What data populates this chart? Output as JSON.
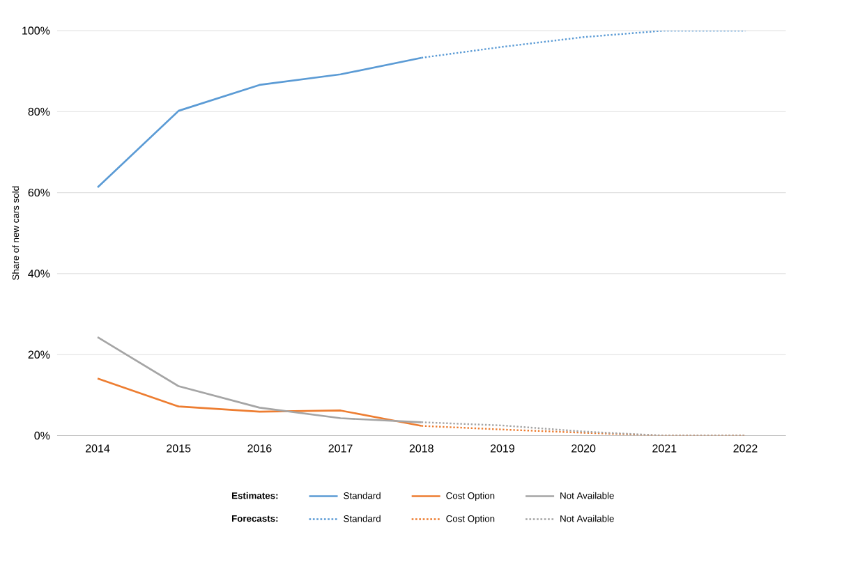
{
  "chart_data": {
    "type": "line",
    "ylabel": "Share of new cars sold",
    "categories": [
      "2014",
      "2015",
      "2016",
      "2017",
      "2018",
      "2019",
      "2020",
      "2021",
      "2022"
    ],
    "series": [
      {
        "name": "Standard",
        "color": "#5b9bd5",
        "line_style": "solid",
        "values": [
          61.3,
          80.2,
          86.6,
          89.2,
          93.3,
          null,
          null,
          null,
          null
        ]
      },
      {
        "name": "Cost Option",
        "color": "#ed7d31",
        "line_style": "solid",
        "values": [
          14.1,
          7.2,
          5.9,
          6.2,
          2.4,
          null,
          null,
          null,
          null
        ]
      },
      {
        "name": "Not Available",
        "color": "#a5a5a5",
        "line_style": "solid",
        "values": [
          24.3,
          12.2,
          6.9,
          4.3,
          3.3,
          null,
          null,
          null,
          null
        ]
      },
      {
        "name": "Standard",
        "color": "#5b9bd5",
        "line_style": "dotted",
        "values": [
          null,
          null,
          null,
          null,
          93.3,
          96.0,
          98.4,
          100,
          100
        ]
      },
      {
        "name": "Cost Option",
        "color": "#ed7d31",
        "line_style": "dotted",
        "values": [
          null,
          null,
          null,
          null,
          2.4,
          1.5,
          0.7,
          0,
          0
        ]
      },
      {
        "name": "Not Available",
        "color": "#a5a5a5",
        "line_style": "dotted",
        "values": [
          null,
          null,
          null,
          null,
          3.3,
          2.5,
          1.0,
          0,
          0
        ]
      }
    ],
    "annotations": [
      "**Estimates:**",
      "**Forecasts:**"
    ],
    "ylim": [
      0,
      100
    ],
    "yticks": [
      {
        "value": 0,
        "label": "0%"
      },
      {
        "value": 20,
        "label": "20%"
      },
      {
        "value": 40,
        "label": "40%"
      },
      {
        "value": 60,
        "label": "60%"
      },
      {
        "value": 80,
        "label": "80%"
      },
      {
        "value": 100,
        "label": "100%"
      }
    ],
    "grid": "y",
    "legend": "bottom"
  }
}
